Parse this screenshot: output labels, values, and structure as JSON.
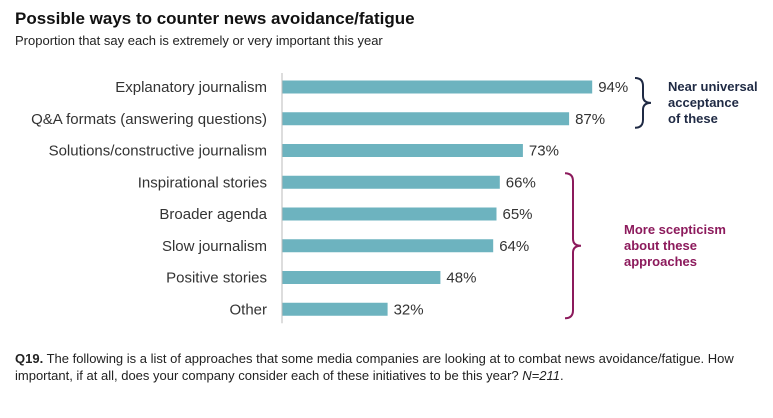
{
  "chart_data": {
    "type": "bar",
    "orientation": "horizontal",
    "title": "Possible ways to counter news avoidance/fatigue",
    "subtitle": "Proportion that say each is extremely or very important this year",
    "categories": [
      "Explanatory journalism",
      "Q&A formats (answering questions)",
      "Solutions/constructive journalism",
      "Inspirational stories",
      "Broader agenda",
      "Slow journalism",
      "Positive stories",
      "Other"
    ],
    "values": [
      94,
      87,
      73,
      66,
      65,
      64,
      48,
      32
    ],
    "value_labels": [
      "94%",
      "87%",
      "73%",
      "66%",
      "65%",
      "64%",
      "48%",
      "32%"
    ],
    "xlim": [
      0,
      100
    ],
    "grid": false,
    "bar_color": "#6db3bf",
    "annotations": [
      {
        "category_range": [
          0,
          1
        ],
        "lines": [
          "Near universal",
          "acceptance",
          "of these"
        ],
        "color": "#1f2a44"
      },
      {
        "category_range": [
          3,
          7
        ],
        "lines": [
          "More scepticism",
          "about these",
          "approaches"
        ],
        "color": "#8c1a5c"
      }
    ]
  },
  "footnote": {
    "question_id": "Q19.",
    "text": " The following is a list of approaches that some media companies are looking at to combat news avoidance/fatigue. How important, if at all, does your company consider each of these initiatives to be this year? ",
    "sample": "N=211",
    "end": "."
  }
}
